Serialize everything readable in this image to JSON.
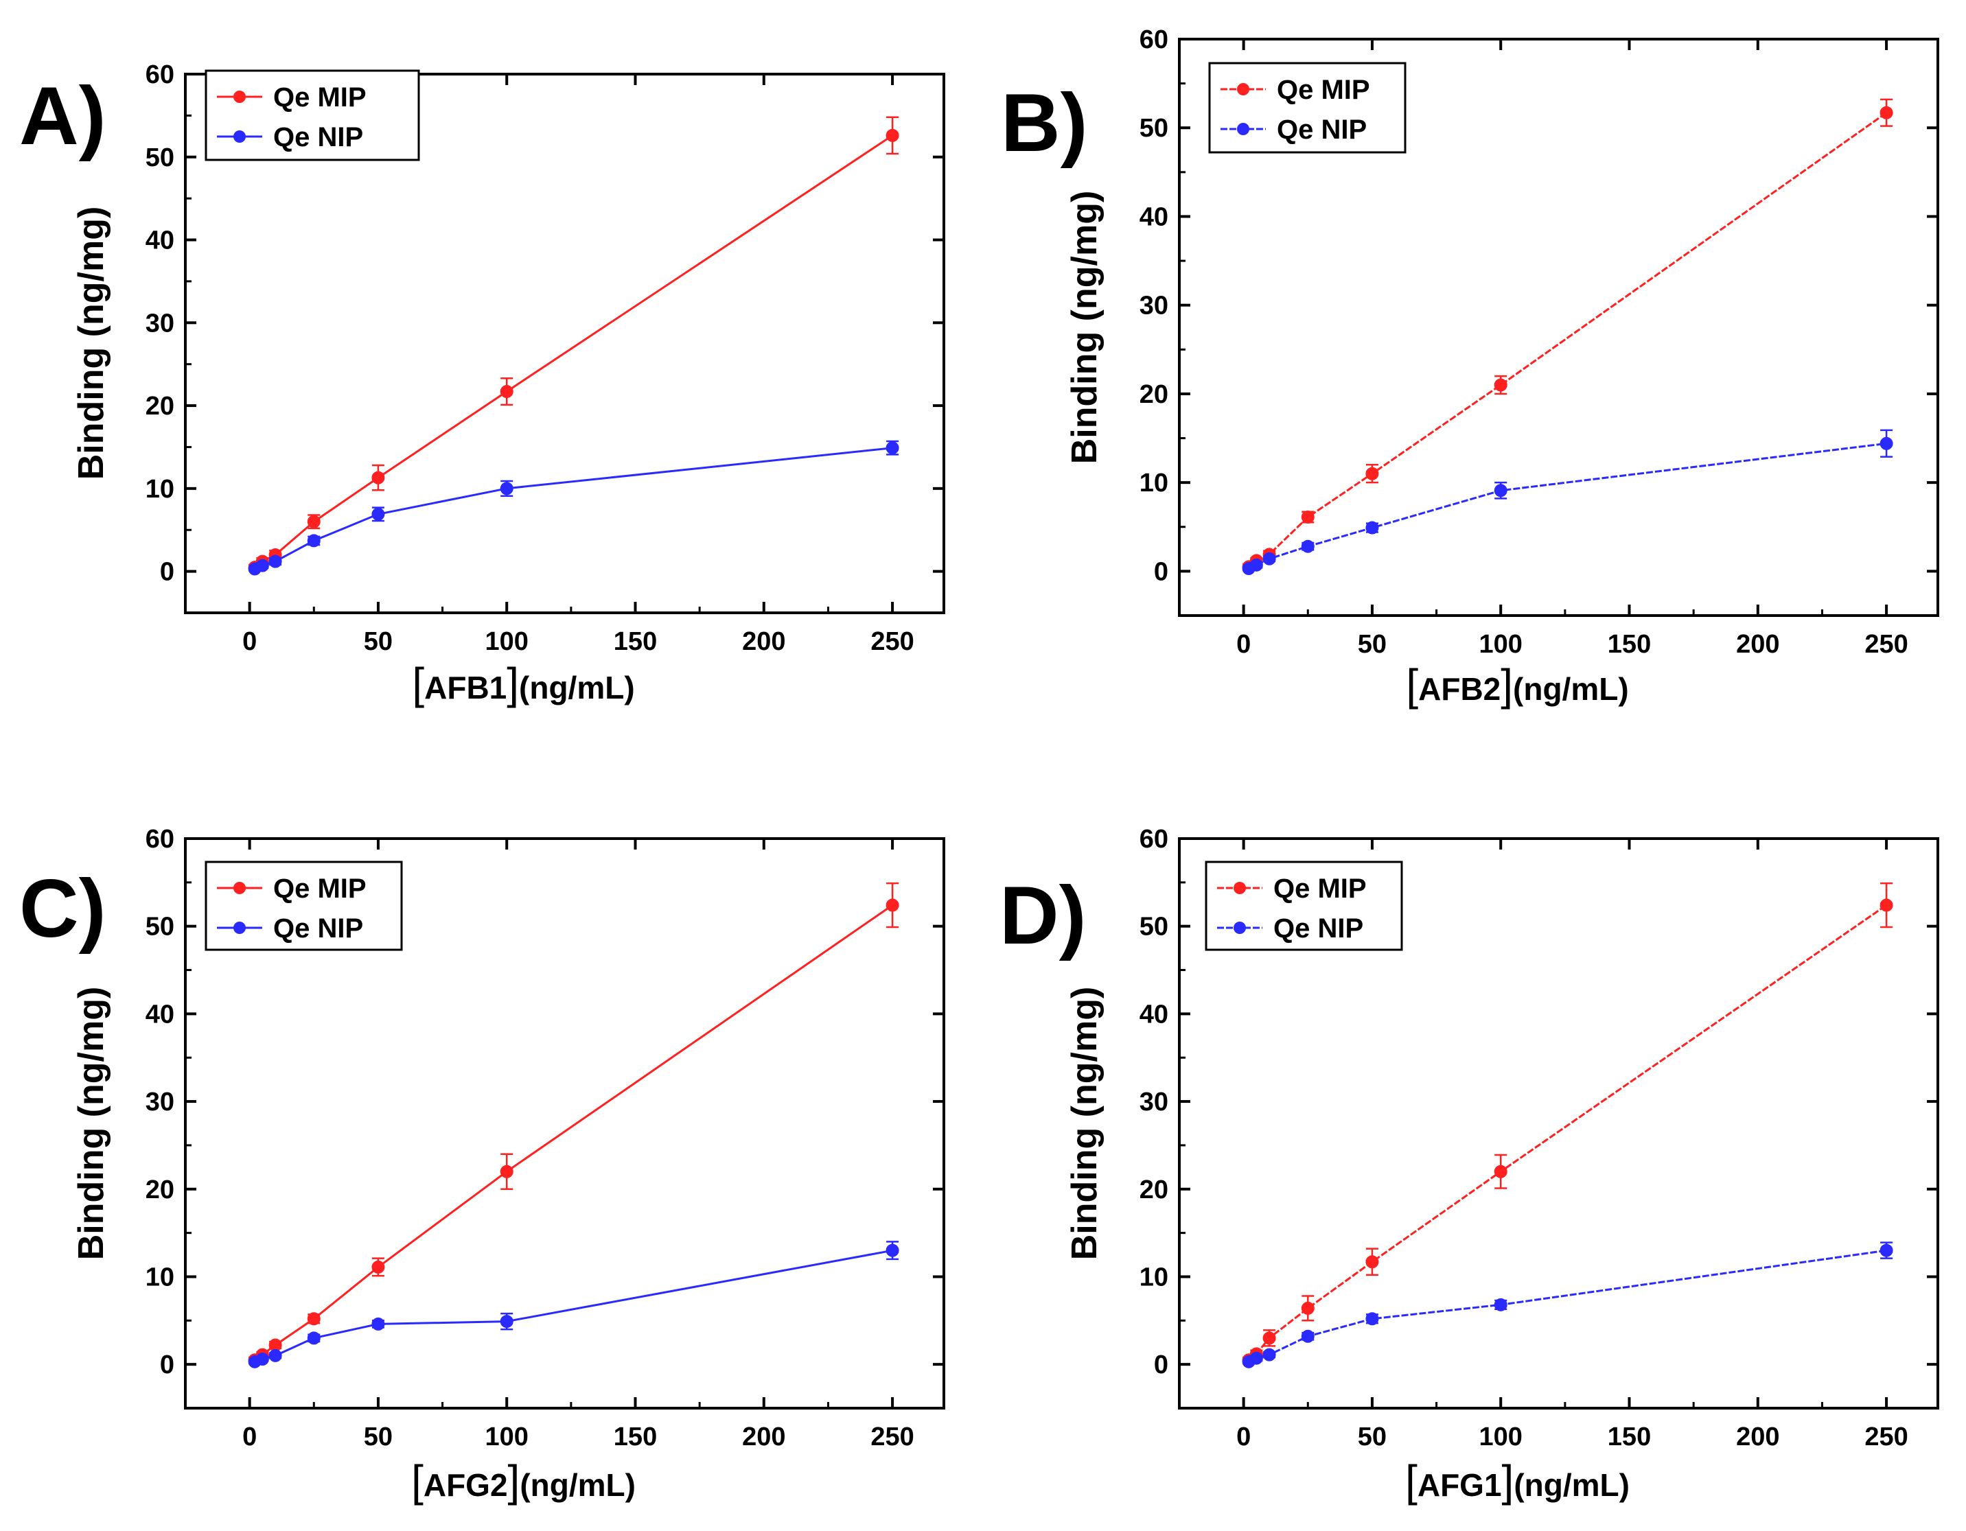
{
  "colors": {
    "mip": "#ff2020",
    "nip": "#2a2aff",
    "axis": "#000000"
  },
  "chart_data": [
    {
      "type": "line",
      "panel_label": "A)",
      "xlabel_prefix": "[",
      "xlabel_analyte": "AFB1",
      "xlabel_suffix": "](ng/mL)",
      "ylabel": "Binding (ng/mg)",
      "xlim": [
        -25,
        270
      ],
      "ylim": [
        -5,
        60
      ],
      "xticks": [
        0,
        50,
        100,
        150,
        200,
        250
      ],
      "yticks": [
        0,
        10,
        20,
        30,
        40,
        50,
        60
      ],
      "x": [
        2,
        5,
        10,
        25,
        50,
        100,
        250
      ],
      "series": [
        {
          "name": "Qe MIP",
          "color": "#ff2020",
          "dashed": false,
          "values": [
            0.5,
            1.2,
            2.0,
            6.0,
            11.3,
            21.7,
            52.6
          ],
          "errors": [
            0.3,
            0.4,
            0.5,
            0.8,
            1.5,
            1.6,
            2.2
          ]
        },
        {
          "name": "Qe NIP",
          "color": "#2a2aff",
          "dashed": false,
          "values": [
            0.3,
            0.7,
            1.2,
            3.7,
            6.9,
            10.0,
            14.9
          ],
          "errors": [
            0.2,
            0.3,
            0.4,
            0.5,
            0.8,
            0.9,
            0.8
          ]
        }
      ]
    },
    {
      "type": "line",
      "panel_label": "B)",
      "xlabel_prefix": "[",
      "xlabel_analyte": "AFB2",
      "xlabel_suffix": "](ng/mL)",
      "ylabel": "Binding (ng/mg)",
      "xlim": [
        -25,
        270
      ],
      "ylim": [
        -5,
        60
      ],
      "xticks": [
        0,
        50,
        100,
        150,
        200,
        250
      ],
      "yticks": [
        0,
        10,
        20,
        30,
        40,
        50,
        60
      ],
      "x": [
        2,
        5,
        10,
        25,
        50,
        100,
        250
      ],
      "series": [
        {
          "name": "Qe MIP",
          "color": "#ff2020",
          "dashed": true,
          "values": [
            0.5,
            1.2,
            1.9,
            6.1,
            11.0,
            21.0,
            51.7
          ],
          "errors": [
            0.3,
            0.3,
            0.4,
            0.6,
            1.0,
            1.0,
            1.5
          ]
        },
        {
          "name": "Qe NIP",
          "color": "#2a2aff",
          "dashed": true,
          "values": [
            0.3,
            0.7,
            1.4,
            2.8,
            4.9,
            9.1,
            14.4
          ],
          "errors": [
            0.2,
            0.3,
            0.3,
            0.4,
            0.5,
            0.9,
            1.5
          ]
        }
      ]
    },
    {
      "type": "line",
      "panel_label": "C)",
      "xlabel_prefix": "[",
      "xlabel_analyte": "AFG2",
      "xlabel_suffix": "](ng/mL)",
      "ylabel": "Binding (ng/mg)",
      "xlim": [
        -25,
        270
      ],
      "ylim": [
        -5,
        60
      ],
      "xticks": [
        0,
        50,
        100,
        150,
        200,
        250
      ],
      "yticks": [
        0,
        10,
        20,
        30,
        40,
        50,
        60
      ],
      "x": [
        2,
        5,
        10,
        25,
        50,
        100,
        250
      ],
      "series": [
        {
          "name": "Qe MIP",
          "color": "#ff2020",
          "dashed": false,
          "values": [
            0.5,
            1.1,
            2.2,
            5.2,
            11.1,
            22.0,
            52.4
          ],
          "errors": [
            0.3,
            0.3,
            0.4,
            0.5,
            1.0,
            2.0,
            2.5
          ]
        },
        {
          "name": "Qe NIP",
          "color": "#2a2aff",
          "dashed": false,
          "values": [
            0.3,
            0.6,
            1.0,
            3.0,
            4.6,
            4.9,
            13.0
          ],
          "errors": [
            0.2,
            0.2,
            0.3,
            0.4,
            0.4,
            0.9,
            1.0
          ]
        }
      ]
    },
    {
      "type": "line",
      "panel_label": "D)",
      "xlabel_prefix": "[",
      "xlabel_analyte": "AFG1",
      "xlabel_suffix": "](ng/mL)",
      "ylabel": "Binding (ng/mg)",
      "xlim": [
        -25,
        270
      ],
      "ylim": [
        -5,
        60
      ],
      "xticks": [
        0,
        50,
        100,
        150,
        200,
        250
      ],
      "yticks": [
        0,
        10,
        20,
        30,
        40,
        50,
        60
      ],
      "x": [
        2,
        5,
        10,
        25,
        50,
        100,
        250
      ],
      "series": [
        {
          "name": "Qe MIP",
          "color": "#ff2020",
          "dashed": true,
          "values": [
            0.5,
            1.2,
            3.0,
            6.4,
            11.7,
            22.0,
            52.4
          ],
          "errors": [
            0.3,
            0.4,
            0.9,
            1.4,
            1.5,
            1.9,
            2.5
          ]
        },
        {
          "name": "Qe NIP",
          "color": "#2a2aff",
          "dashed": true,
          "values": [
            0.3,
            0.7,
            1.1,
            3.2,
            5.2,
            6.8,
            13.0
          ],
          "errors": [
            0.2,
            0.3,
            0.3,
            0.4,
            0.5,
            0.5,
            0.9
          ]
        }
      ]
    }
  ]
}
